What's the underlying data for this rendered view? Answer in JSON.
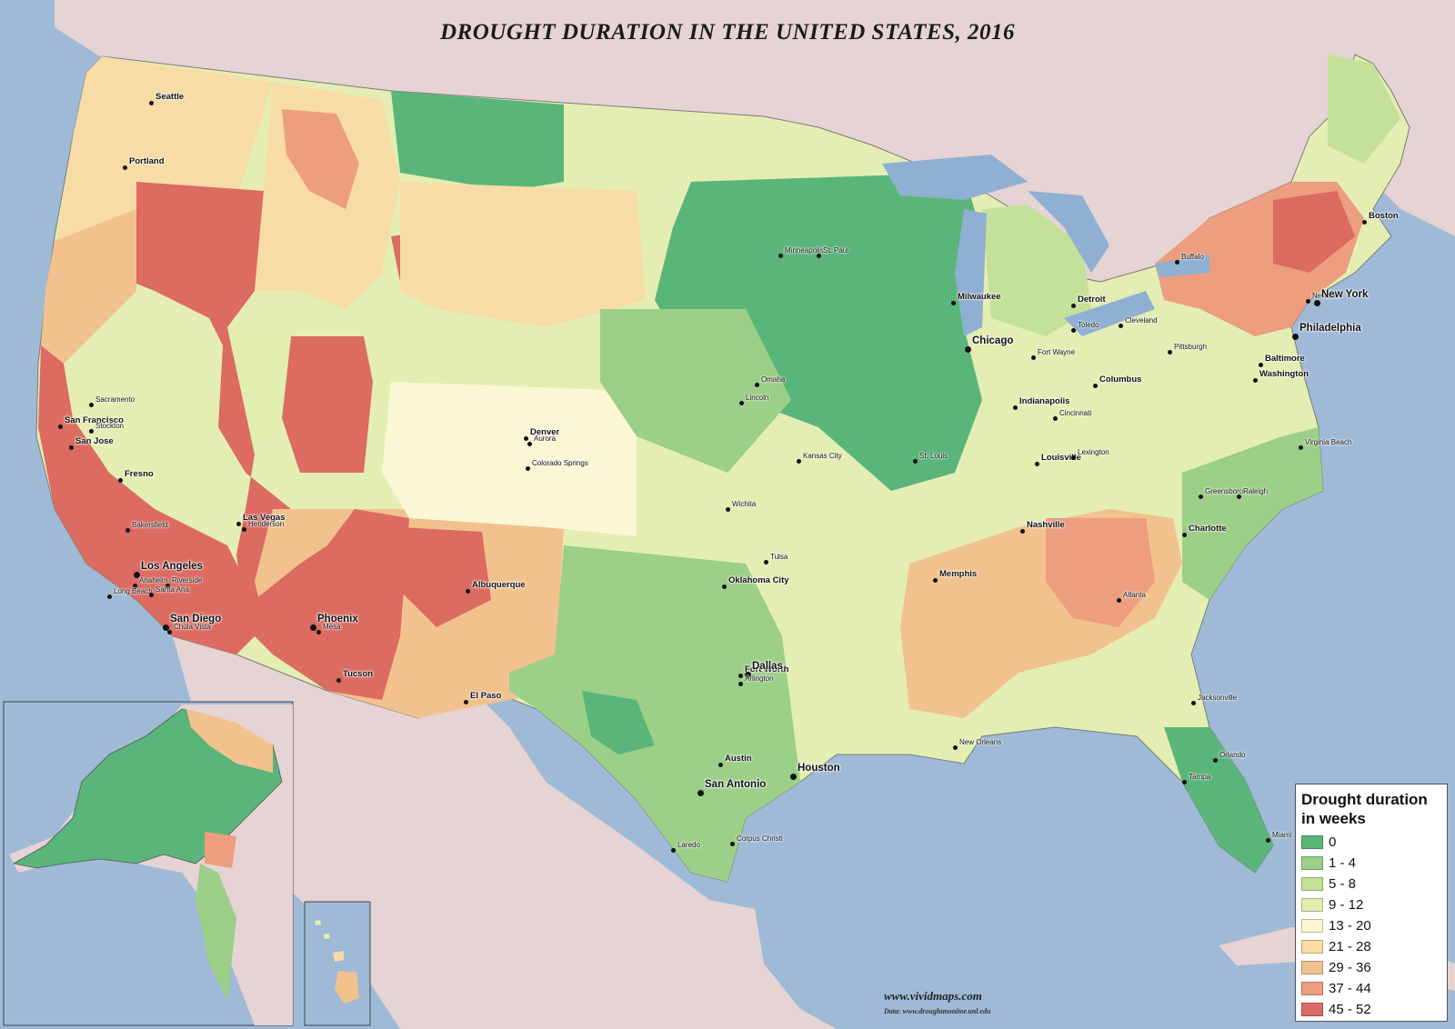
{
  "map": {
    "title": "DROUGHT DURATION IN THE UNITED STATES, 2016",
    "credit": "www.vividmaps.com",
    "source": "Data: www.droughtmonitor.unl.edu",
    "colors": {
      "water": "#9fbad6",
      "land_outside": "#e6d3d4",
      "lakes": "#8fb0d2"
    },
    "legend": {
      "title": "Drought duration in weeks",
      "items": [
        {
          "label": "0",
          "color": "#5ab57a"
        },
        {
          "label": "1 - 4",
          "color": "#9ccf87"
        },
        {
          "label": "5 - 8",
          "color": "#c4e199"
        },
        {
          "label": "9 - 12",
          "color": "#e1eeb0"
        },
        {
          "label": "13 - 20",
          "color": "#fbf7d4"
        },
        {
          "label": "21 - 28",
          "color": "#f7dca6"
        },
        {
          "label": "29 - 36",
          "color": "#f2c28e"
        },
        {
          "label": "37 - 44",
          "color": "#ec9e7e"
        },
        {
          "label": "45 - 52",
          "color": "#dc6b62"
        }
      ]
    },
    "cities": [
      {
        "name": "Seattle",
        "size": "mid"
      },
      {
        "name": "Portland",
        "size": "mid"
      },
      {
        "name": "Sacramento",
        "size": "small"
      },
      {
        "name": "San Francisco",
        "size": "mid"
      },
      {
        "name": "Stockton",
        "size": "small"
      },
      {
        "name": "San Jose",
        "size": "mid"
      },
      {
        "name": "Fresno",
        "size": "mid"
      },
      {
        "name": "Bakersfield",
        "size": "small"
      },
      {
        "name": "Las Vegas",
        "size": "mid"
      },
      {
        "name": "Henderson",
        "size": "small"
      },
      {
        "name": "Los Angeles",
        "size": "major"
      },
      {
        "name": "Anaheim",
        "size": "small"
      },
      {
        "name": "Riverside",
        "size": "small"
      },
      {
        "name": "Long Beach",
        "size": "small"
      },
      {
        "name": "Santa Ana",
        "size": "small"
      },
      {
        "name": "San Diego",
        "size": "major"
      },
      {
        "name": "Chula Vista",
        "size": "small"
      },
      {
        "name": "Phoenix",
        "size": "major"
      },
      {
        "name": "Mesa",
        "size": "small"
      },
      {
        "name": "Tucson",
        "size": "mid"
      },
      {
        "name": "El Paso",
        "size": "mid"
      },
      {
        "name": "Albuquerque",
        "size": "mid"
      },
      {
        "name": "Denver",
        "size": "mid"
      },
      {
        "name": "Aurora",
        "size": "small"
      },
      {
        "name": "Colorado Springs",
        "size": "small"
      },
      {
        "name": "Minneapolis",
        "size": "small"
      },
      {
        "name": "St. Paul",
        "size": "small"
      },
      {
        "name": "Omaha",
        "size": "small"
      },
      {
        "name": "Lincoln",
        "size": "small"
      },
      {
        "name": "Kansas City",
        "size": "small"
      },
      {
        "name": "Wichita",
        "size": "small"
      },
      {
        "name": "Tulsa",
        "size": "small"
      },
      {
        "name": "Oklahoma City",
        "size": "mid"
      },
      {
        "name": "Fort Worth",
        "size": "mid"
      },
      {
        "name": "Dallas",
        "size": "major"
      },
      {
        "name": "Arlington",
        "size": "small"
      },
      {
        "name": "Austin",
        "size": "mid"
      },
      {
        "name": "San Antonio",
        "size": "major"
      },
      {
        "name": "Houston",
        "size": "major"
      },
      {
        "name": "Laredo",
        "size": "small"
      },
      {
        "name": "Corpus Christi",
        "size": "small"
      },
      {
        "name": "Milwaukee",
        "size": "mid"
      },
      {
        "name": "Chicago",
        "size": "major"
      },
      {
        "name": "Detroit",
        "size": "mid"
      },
      {
        "name": "Toledo",
        "size": "small"
      },
      {
        "name": "Cleveland",
        "size": "small"
      },
      {
        "name": "Fort Wayne",
        "size": "small"
      },
      {
        "name": "Indianapolis",
        "size": "mid"
      },
      {
        "name": "Columbus",
        "size": "mid"
      },
      {
        "name": "Cincinnati",
        "size": "small"
      },
      {
        "name": "St. Louis",
        "size": "small"
      },
      {
        "name": "Louisville",
        "size": "mid"
      },
      {
        "name": "Lexington",
        "size": "small"
      },
      {
        "name": "Nashville",
        "size": "mid"
      },
      {
        "name": "Memphis",
        "size": "mid"
      },
      {
        "name": "Atlanta",
        "size": "small"
      },
      {
        "name": "Charlotte",
        "size": "mid"
      },
      {
        "name": "Greensboro",
        "size": "small"
      },
      {
        "name": "Raleigh",
        "size": "small"
      },
      {
        "name": "Virginia Beach",
        "size": "small"
      },
      {
        "name": "Pittsburgh",
        "size": "small"
      },
      {
        "name": "Buffalo",
        "size": "small"
      },
      {
        "name": "Baltimore",
        "size": "mid"
      },
      {
        "name": "Washington",
        "size": "mid"
      },
      {
        "name": "Philadelphia",
        "size": "major"
      },
      {
        "name": "Newark",
        "size": "small"
      },
      {
        "name": "New York",
        "size": "major"
      },
      {
        "name": "Boston",
        "size": "mid"
      },
      {
        "name": "New Orleans",
        "size": "small"
      },
      {
        "name": "Jacksonville",
        "size": "small"
      },
      {
        "name": "Orlando",
        "size": "small"
      },
      {
        "name": "Tampa",
        "size": "small"
      },
      {
        "name": "Miami",
        "size": "small"
      }
    ]
  }
}
